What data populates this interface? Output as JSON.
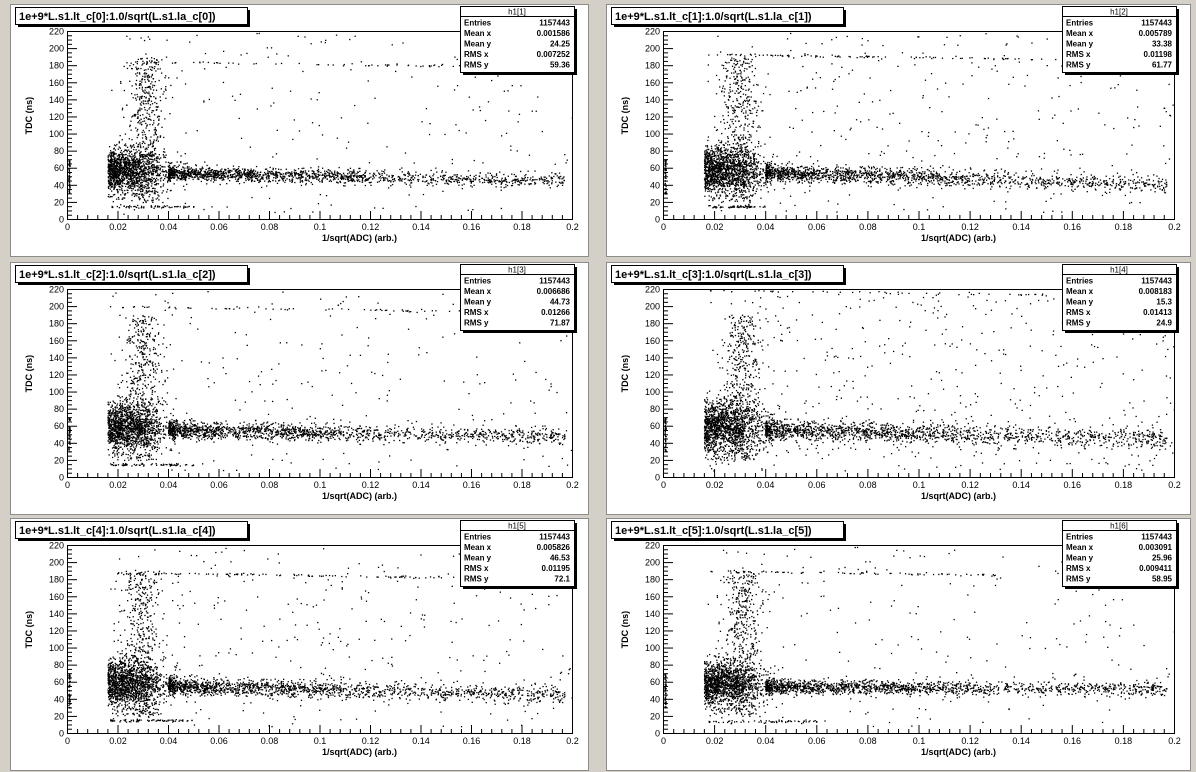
{
  "chart_data": [
    {
      "type": "scatter",
      "title": "1e+9*L.s1.lt_c[0]:1.0/sqrt(L.s1.la_c[0])",
      "xlabel": "1/sqrt(ADC) (arb.)",
      "ylabel": "TDC (ns)",
      "xlim": [
        0,
        0.2
      ],
      "ylim": [
        0,
        220
      ],
      "xticks": [
        "0",
        "0.02",
        "0.04",
        "0.06",
        "0.08",
        "0.1",
        "0.12",
        "0.14",
        "0.16",
        "0.18",
        "0.2"
      ],
      "yticks": [
        "0",
        "20",
        "40",
        "60",
        "80",
        "100",
        "120",
        "140",
        "160",
        "180",
        "200",
        "220"
      ],
      "stats": {
        "name": "h1[1]",
        "rows": [
          [
            "Entries",
            "1157443"
          ],
          [
            "Mean x",
            "0.001586"
          ],
          [
            "Mean y",
            "24.25"
          ],
          [
            "RMS x",
            "0.007252"
          ],
          [
            "RMS y",
            "59.36"
          ]
        ]
      },
      "features": {
        "band_y": 54,
        "band_width": 5,
        "band_slope": -55,
        "band_end": 0.197,
        "vert_x": 0.031,
        "top_y": 185,
        "top_end": 0.19,
        "top_density": 0.5,
        "bottom_y": 15,
        "bottom_end": 0.05,
        "scatter_density": 0.6
      }
    },
    {
      "type": "scatter",
      "title": "1e+9*L.s1.lt_c[1]:1.0/sqrt(L.s1.la_c[1])",
      "xlabel": "1/sqrt(ADC) (arb.)",
      "ylabel": "TDC (ns)",
      "xlim": [
        0,
        0.2
      ],
      "ylim": [
        0,
        220
      ],
      "xticks": [
        "0",
        "0.02",
        "0.04",
        "0.06",
        "0.08",
        "0.1",
        "0.12",
        "0.14",
        "0.16",
        "0.18",
        "0.2"
      ],
      "yticks": [
        "0",
        "20",
        "40",
        "60",
        "80",
        "100",
        "120",
        "140",
        "160",
        "180",
        "200",
        "220"
      ],
      "stats": {
        "name": "h1[2]",
        "rows": [
          [
            "Entries",
            "1157443"
          ],
          [
            "Mean x",
            "0.005789"
          ],
          [
            "Mean y",
            "33.38"
          ],
          [
            "RMS x",
            "0.01198"
          ],
          [
            "RMS y",
            "61.77"
          ]
        ]
      },
      "features": {
        "band_y": 55,
        "band_width": 6,
        "band_slope": -90,
        "band_end": 0.197,
        "vert_x": 0.03,
        "top_y": 193,
        "top_end": 0.16,
        "top_density": 0.7,
        "bottom_y": 15,
        "bottom_end": 0.04,
        "scatter_density": 0.8
      }
    },
    {
      "type": "scatter",
      "title": "1e+9*L.s1.lt_c[2]:1.0/sqrt(L.s1.la_c[2])",
      "xlabel": "1/sqrt(ADC) (arb.)",
      "ylabel": "TDC (ns)",
      "xlim": [
        0,
        0.2
      ],
      "ylim": [
        0,
        220
      ],
      "xticks": [
        "0",
        "0.02",
        "0.04",
        "0.06",
        "0.08",
        "0.1",
        "0.12",
        "0.14",
        "0.16",
        "0.18",
        "0.2"
      ],
      "yticks": [
        "0",
        "20",
        "40",
        "60",
        "80",
        "100",
        "120",
        "140",
        "160",
        "180",
        "200",
        "220"
      ],
      "stats": {
        "name": "h1[3]",
        "rows": [
          [
            "Entries",
            "1157443"
          ],
          [
            "Mean x",
            "0.006686"
          ],
          [
            "Mean y",
            "44.73"
          ],
          [
            "RMS x",
            "0.01266"
          ],
          [
            "RMS y",
            "71.87"
          ]
        ]
      },
      "features": {
        "band_y": 56,
        "band_width": 6,
        "band_slope": -55,
        "band_end": 0.197,
        "vert_x": 0.03,
        "top_y": 200,
        "top_end": 0.19,
        "top_density": 0.5,
        "bottom_y": 15,
        "bottom_end": 0.05,
        "scatter_density": 0.6
      }
    },
    {
      "type": "scatter",
      "title": "1e+9*L.s1.lt_c[3]:1.0/sqrt(L.s1.la_c[3])",
      "xlabel": "1/sqrt(ADC) (arb.)",
      "ylabel": "TDC (ns)",
      "xlim": [
        0,
        0.2
      ],
      "ylim": [
        0,
        220
      ],
      "xticks": [
        "0",
        "0.02",
        "0.04",
        "0.06",
        "0.08",
        "0.1",
        "0.12",
        "0.14",
        "0.16",
        "0.18",
        "0.2"
      ],
      "yticks": [
        "0",
        "20",
        "40",
        "60",
        "80",
        "100",
        "120",
        "140",
        "160",
        "180",
        "200",
        "220"
      ],
      "stats": {
        "name": "h1[4]",
        "rows": [
          [
            "Entries",
            "1157443"
          ],
          [
            "Mean x",
            "0.008183"
          ],
          [
            "Mean y",
            "15.3"
          ],
          [
            "RMS x",
            "0.01413"
          ],
          [
            "RMS y",
            "24.9"
          ]
        ]
      },
      "features": {
        "band_y": 56,
        "band_width": 7,
        "band_slope": -70,
        "band_end": 0.197,
        "vert_x": 0.031,
        "top_y": 219,
        "top_end": 0.19,
        "top_density": 0.4,
        "bottom_y": 0,
        "bottom_end": 0,
        "scatter_density": 1.2
      }
    },
    {
      "type": "scatter",
      "title": "1e+9*L.s1.lt_c[4]:1.0/sqrt(L.s1.la_c[4])",
      "xlabel": "1/sqrt(ADC) (arb.)",
      "ylabel": "TDC (ns)",
      "xlim": [
        0,
        0.2
      ],
      "ylim": [
        0,
        220
      ],
      "xticks": [
        "0",
        "0.02",
        "0.04",
        "0.06",
        "0.08",
        "0.1",
        "0.12",
        "0.14",
        "0.16",
        "0.18",
        "0.2"
      ],
      "yticks": [
        "0",
        "20",
        "40",
        "60",
        "80",
        "100",
        "120",
        "140",
        "160",
        "180",
        "200",
        "220"
      ],
      "stats": {
        "name": "h1[5]",
        "rows": [
          [
            "Entries",
            "1157443"
          ],
          [
            "Mean x",
            "0.005826"
          ],
          [
            "Mean y",
            "46.53"
          ],
          [
            "RMS x",
            "0.01195"
          ],
          [
            "RMS y",
            "72.1"
          ]
        ]
      },
      "features": {
        "band_y": 56,
        "band_width": 6,
        "band_slope": -70,
        "band_end": 0.197,
        "vert_x": 0.029,
        "top_y": 188,
        "top_end": 0.15,
        "top_density": 0.7,
        "bottom_y": 15,
        "bottom_end": 0.05,
        "scatter_density": 0.7
      }
    },
    {
      "type": "scatter",
      "title": "1e+9*L.s1.lt_c[5]:1.0/sqrt(L.s1.la_c[5])",
      "xlabel": "1/sqrt(ADC) (arb.)",
      "ylabel": "TDC (ns)",
      "xlim": [
        0,
        0.2
      ],
      "ylim": [
        0,
        220
      ],
      "xticks": [
        "0",
        "0.02",
        "0.04",
        "0.06",
        "0.08",
        "0.1",
        "0.12",
        "0.14",
        "0.16",
        "0.18",
        "0.2"
      ],
      "yticks": [
        "0",
        "20",
        "40",
        "60",
        "80",
        "100",
        "120",
        "140",
        "160",
        "180",
        "200",
        "220"
      ],
      "stats": {
        "name": "h1[6]",
        "rows": [
          [
            "Entries",
            "1157443"
          ],
          [
            "Mean x",
            "0.003091"
          ],
          [
            "Mean y",
            "25.96"
          ],
          [
            "RMS x",
            "0.009411"
          ],
          [
            "RMS y",
            "58.95"
          ]
        ]
      },
      "features": {
        "band_y": 55,
        "band_width": 5,
        "band_slope": -20,
        "band_end": 0.197,
        "vert_x": 0.031,
        "top_y": 190,
        "top_end": 0.13,
        "top_density": 0.5,
        "bottom_y": 14,
        "bottom_end": 0.06,
        "scatter_density": 0.6
      }
    }
  ]
}
